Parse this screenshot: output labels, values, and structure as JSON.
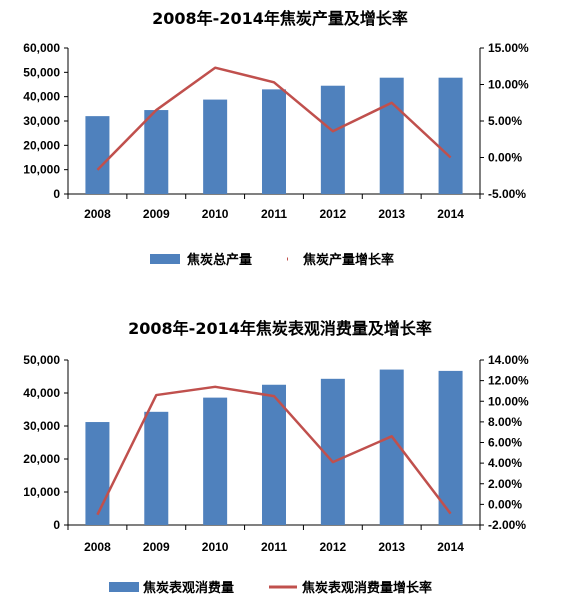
{
  "chart_data": [
    {
      "type": "bar+line",
      "title": "2008年-2014年焦炭产量及增长率",
      "categories": [
        "2008",
        "2009",
        "2010",
        "2011",
        "2012",
        "2013",
        "2014"
      ],
      "series": [
        {
          "name": "焦炭总产量",
          "type": "bar",
          "axis": "left",
          "color": "#4f81bd",
          "values": [
            32000,
            34500,
            38800,
            43000,
            44500,
            47800,
            47800
          ]
        },
        {
          "name": "焦炭产量增长率",
          "type": "line",
          "axis": "right",
          "color": "#c0504d",
          "values": [
            -1.7,
            6.5,
            12.3,
            10.3,
            3.6,
            7.5,
            0.0
          ]
        }
      ],
      "y_left": {
        "ylim": [
          0,
          60000
        ],
        "ticks": [
          "0",
          "10,000",
          "20,000",
          "30,000",
          "40,000",
          "50,000",
          "60,000"
        ]
      },
      "y_right": {
        "ylim": [
          -5,
          15
        ],
        "ticks": [
          "-5.00%",
          "0.00%",
          "5.00%",
          "10.00%",
          "15.00%"
        ]
      },
      "legend": "bottom"
    },
    {
      "type": "bar+line",
      "title": "2008年-2014年焦炭表观消费量及增长率",
      "categories": [
        "2008",
        "2009",
        "2010",
        "2011",
        "2012",
        "2013",
        "2014"
      ],
      "series": [
        {
          "name": "焦炭表观消费量",
          "type": "bar",
          "axis": "left",
          "color": "#4f81bd",
          "values": [
            31200,
            34300,
            38600,
            42500,
            44300,
            47100,
            46700
          ]
        },
        {
          "name": "焦炭表观消费量增长率",
          "type": "line",
          "axis": "right",
          "color": "#c0504d",
          "values": [
            -1.0,
            10.6,
            11.4,
            10.5,
            4.1,
            6.6,
            -0.9
          ]
        }
      ],
      "y_left": {
        "ylim": [
          0,
          50000
        ],
        "ticks": [
          "0",
          "10,000",
          "20,000",
          "30,000",
          "40,000",
          "50,000"
        ]
      },
      "y_right": {
        "ylim": [
          -2,
          14
        ],
        "ticks": [
          "-2.00%",
          "0.00%",
          "2.00%",
          "4.00%",
          "6.00%",
          "8.00%",
          "10.00%",
          "12.00%",
          "14.00%"
        ]
      },
      "legend": "bottom"
    }
  ]
}
